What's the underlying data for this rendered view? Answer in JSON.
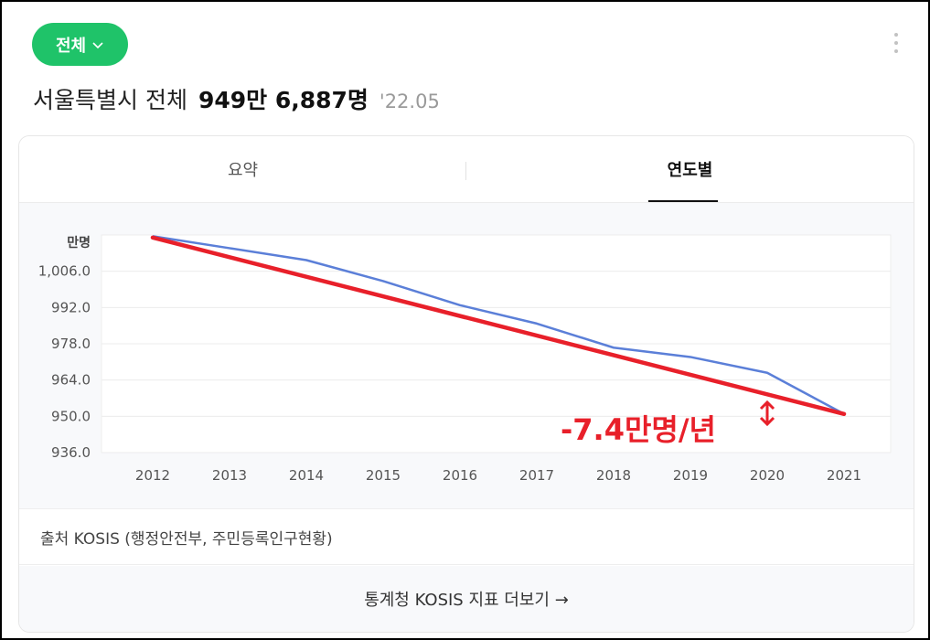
{
  "header": {
    "scope_label": "전체",
    "region_label": "서울특별시 전체",
    "population": "949만 6,887명",
    "date": "'22.05"
  },
  "tabs": [
    {
      "label": "요약",
      "active": false
    },
    {
      "label": "연도별",
      "active": true
    }
  ],
  "chart_data": {
    "type": "line",
    "ylabel": "만명",
    "xlabel": "",
    "title": "",
    "x": [
      "2012",
      "2013",
      "2014",
      "2015",
      "2016",
      "2017",
      "2018",
      "2019",
      "2020",
      "2021"
    ],
    "ylim": [
      936.0,
      1020.0
    ],
    "yticks": [
      936.0,
      950.0,
      964.0,
      978.0,
      992.0,
      1006.0
    ],
    "ytick_labels": [
      "936.0",
      "950.0",
      "964.0",
      "978.0",
      "992.0",
      "1,006.0"
    ],
    "grid": true,
    "series": [
      {
        "values": [
          1019.5,
          1014.9,
          1010.3,
          1002.2,
          992.9,
          985.8,
          976.5,
          972.9,
          966.8,
          950.9
        ],
        "color": "#5b7fd8"
      }
    ],
    "annotation": {
      "text": "-7.4만명/년",
      "trend_from": {
        "x": "2012",
        "y": 1019.0
      },
      "trend_to": {
        "x": "2021",
        "y": 950.9
      },
      "color": "#e8202a"
    }
  },
  "footer": {
    "source_text": "출처 KOSIS (행정안전부, 주민등록인구현황)",
    "more_link_text": "통계청 KOSIS 지표 더보기 →"
  },
  "colors": {
    "accent": "#1fc369",
    "line": "#5b7fd8",
    "trend": "#e8202a"
  }
}
